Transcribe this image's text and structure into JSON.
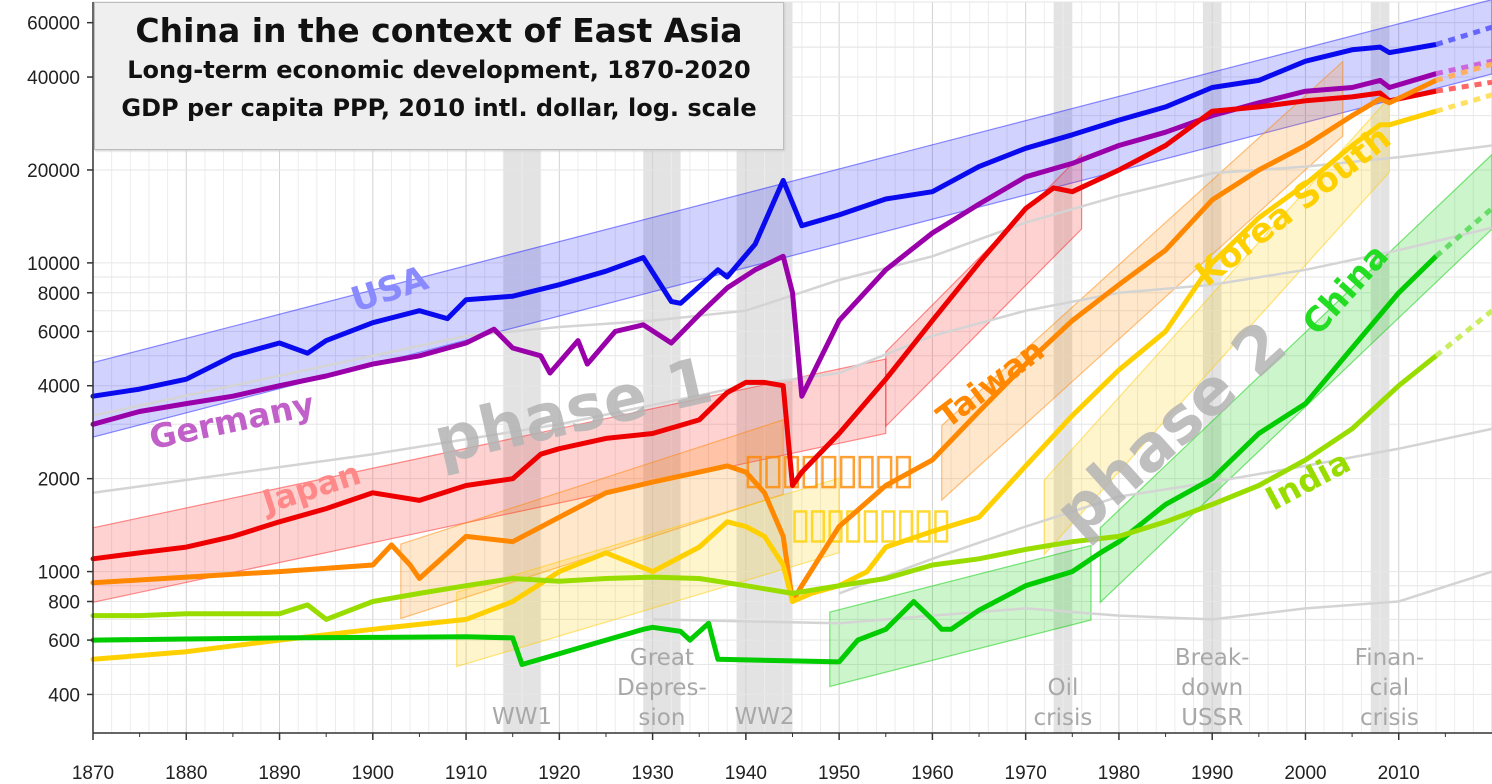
{
  "chart_data": {
    "type": "line",
    "title": "China in the context of East Asia",
    "subtitle_lines": [
      "Long-term economic development, 1870-2020",
      "GDP per capita PPP, 2010 intl. dollar, log. scale"
    ],
    "xlabel": "",
    "ylabel": "",
    "xlim": [
      1870,
      2020
    ],
    "ylim": [
      300,
      70000
    ],
    "yscale": "log",
    "grid": true,
    "x_ticks": [
      1870,
      1880,
      1890,
      1900,
      1910,
      1920,
      1930,
      1940,
      1950,
      1960,
      1970,
      1980,
      1990,
      2000,
      2010
    ],
    "y_ticks": [
      {
        "value": 400,
        "label": "400"
      },
      {
        "value": 600,
        "label": "600"
      },
      {
        "value": 800,
        "label": "800"
      },
      {
        "value": 1000,
        "label": "1000"
      },
      {
        "value": 2000,
        "label": "2000"
      },
      {
        "value": 4000,
        "label": "4000"
      },
      {
        "value": 6000,
        "label": "6000"
      },
      {
        "value": 8000,
        "label": "8000"
      },
      {
        "value": 10000,
        "label": "10000"
      },
      {
        "value": 20000,
        "label": "20000"
      },
      {
        "value": 40000,
        "label": "40000"
      },
      {
        "value": 60000,
        "label": "60000"
      }
    ],
    "series": [
      {
        "name": "USA",
        "color": "#0a0aee",
        "x": [
          1870,
          1875,
          1880,
          1885,
          1890,
          1893,
          1895,
          1900,
          1905,
          1908,
          1910,
          1915,
          1920,
          1925,
          1929,
          1932,
          1933,
          1937,
          1938,
          1941,
          1944,
          1946,
          1950,
          1955,
          1960,
          1965,
          1970,
          1975,
          1980,
          1985,
          1990,
          1995,
          2000,
          2005,
          2008,
          2009,
          2014
        ],
        "y": [
          3700,
          3900,
          4200,
          5000,
          5500,
          5100,
          5600,
          6400,
          7000,
          6600,
          7600,
          7800,
          8500,
          9400,
          10400,
          7500,
          7400,
          9500,
          9000,
          11500,
          18500,
          13200,
          14300,
          16100,
          17000,
          20500,
          23500,
          26000,
          29000,
          32000,
          37000,
          39000,
          45000,
          49000,
          50000,
          48000,
          51000
        ]
      },
      {
        "name": "Germany",
        "color": "#9900aa",
        "x": [
          1870,
          1875,
          1880,
          1885,
          1890,
          1895,
          1900,
          1905,
          1910,
          1913,
          1915,
          1918,
          1919,
          1922,
          1923,
          1926,
          1929,
          1932,
          1935,
          1938,
          1941,
          1944,
          1945,
          1946,
          1950,
          1955,
          1960,
          1965,
          1970,
          1975,
          1980,
          1985,
          1990,
          1995,
          2000,
          2005,
          2008,
          2009,
          2014
        ],
        "y": [
          3000,
          3300,
          3500,
          3700,
          4000,
          4300,
          4700,
          5000,
          5500,
          6100,
          5300,
          5000,
          4400,
          5600,
          4700,
          6000,
          6300,
          5500,
          6800,
          8300,
          9500,
          10500,
          8000,
          3700,
          6500,
          9500,
          12500,
          15500,
          19000,
          21000,
          24000,
          26500,
          30000,
          33000,
          36000,
          37000,
          39000,
          37000,
          41000
        ]
      },
      {
        "name": "Japan",
        "color": "#ee0000",
        "x": [
          1870,
          1875,
          1880,
          1885,
          1890,
          1895,
          1900,
          1905,
          1910,
          1915,
          1918,
          1920,
          1925,
          1930,
          1935,
          1938,
          1940,
          1942,
          1944,
          1945,
          1946,
          1950,
          1955,
          1960,
          1965,
          1970,
          1973,
          1975,
          1980,
          1985,
          1990,
          1995,
          2000,
          2005,
          2008,
          2009,
          2014
        ],
        "y": [
          1100,
          1150,
          1200,
          1300,
          1450,
          1600,
          1800,
          1700,
          1900,
          2000,
          2400,
          2500,
          2700,
          2800,
          3100,
          3800,
          4100,
          4100,
          4000,
          1900,
          2100,
          2800,
          4200,
          6500,
          10000,
          15000,
          17500,
          17000,
          20000,
          24000,
          31000,
          32000,
          33500,
          34500,
          35500,
          33500,
          36000
        ]
      },
      {
        "name": "Taiwan",
        "color": "#ff8800",
        "x": [
          1870,
          1880,
          1890,
          1900,
          1902,
          1904,
          1905,
          1910,
          1915,
          1920,
          1925,
          1930,
          1935,
          1938,
          1940,
          1942,
          1944,
          1945,
          1946,
          1950,
          1955,
          1960,
          1965,
          1970,
          1975,
          1980,
          1985,
          1990,
          1995,
          2000,
          2005,
          2008,
          2009,
          2014
        ],
        "y": [
          920,
          960,
          1000,
          1050,
          1220,
          1050,
          950,
          1300,
          1250,
          1500,
          1800,
          1950,
          2100,
          2200,
          2100,
          1800,
          1300,
          800,
          900,
          1400,
          1900,
          2300,
          3300,
          4700,
          6500,
          8500,
          11000,
          16000,
          20000,
          24000,
          30000,
          34000,
          33000,
          39000
        ]
      },
      {
        "name": "Korea South",
        "color": "#ffd000",
        "x": [
          1870,
          1880,
          1890,
          1900,
          1910,
          1915,
          1920,
          1925,
          1930,
          1935,
          1938,
          1940,
          1942,
          1944,
          1945,
          1947,
          1950,
          1953,
          1955,
          1960,
          1965,
          1970,
          1975,
          1980,
          1985,
          1990,
          1995,
          2000,
          2005,
          2008,
          2009,
          2014
        ],
        "y": [
          520,
          550,
          600,
          650,
          700,
          800,
          1000,
          1150,
          1000,
          1200,
          1450,
          1400,
          1300,
          1050,
          800,
          850,
          900,
          1000,
          1200,
          1350,
          1500,
          2200,
          3200,
          4500,
          6000,
          10000,
          14000,
          18000,
          24000,
          28000,
          28000,
          31000
        ]
      },
      {
        "name": "China",
        "color": "#00cc00",
        "x": [
          1870,
          1880,
          1890,
          1900,
          1910,
          1915,
          1916,
          1929,
          1930,
          1933,
          1934,
          1936,
          1937,
          1950,
          1952,
          1955,
          1958,
          1960,
          1961,
          1962,
          1965,
          1970,
          1975,
          1978,
          1980,
          1985,
          1990,
          1995,
          2000,
          2005,
          2010,
          2014
        ],
        "y": [
          600,
          605,
          610,
          612,
          615,
          610,
          500,
          650,
          660,
          640,
          600,
          680,
          520,
          510,
          600,
          650,
          800,
          700,
          650,
          650,
          750,
          900,
          1000,
          1150,
          1250,
          1650,
          2000,
          2800,
          3500,
          5300,
          8000,
          10500
        ]
      },
      {
        "name": "India",
        "color": "#99dd00",
        "x": [
          1870,
          1875,
          1880,
          1885,
          1890,
          1893,
          1895,
          1900,
          1905,
          1910,
          1915,
          1920,
          1925,
          1930,
          1935,
          1940,
          1945,
          1950,
          1955,
          1960,
          1965,
          1970,
          1975,
          1980,
          1985,
          1990,
          1995,
          2000,
          2005,
          2010,
          2014
        ],
        "y": [
          720,
          720,
          730,
          730,
          730,
          780,
          700,
          800,
          850,
          900,
          950,
          930,
          950,
          960,
          950,
          900,
          850,
          900,
          950,
          1050,
          1100,
          1180,
          1250,
          1300,
          1450,
          1650,
          1900,
          2300,
          2900,
          4000,
          5000
        ]
      }
    ],
    "gray_series": [
      {
        "x": [
          1870,
          1900,
          1910,
          1920,
          1930,
          1940,
          1950,
          1960,
          1970,
          1980,
          1990,
          2000,
          2010,
          2020
        ],
        "y": [
          3200,
          5000,
          5800,
          6200,
          6500,
          7000,
          8800,
          10500,
          13500,
          16500,
          19500,
          20500,
          22000,
          24000
        ]
      },
      {
        "x": [
          1870,
          1900,
          1920,
          1940,
          1950,
          1960,
          1970,
          1980,
          1990,
          2000,
          2010,
          2020
        ],
        "y": [
          1800,
          2400,
          3000,
          4000,
          4400,
          5800,
          7000,
          8000,
          8500,
          9500,
          11000,
          13000
        ]
      },
      {
        "x": [
          1950,
          1960,
          1970,
          1980,
          1990,
          2000,
          2010,
          2020
        ],
        "y": [
          850,
          1100,
          1400,
          1750,
          1950,
          2200,
          2500,
          2900
        ]
      },
      {
        "x": [
          1930,
          1950,
          1960,
          1970,
          1980,
          1990,
          2000,
          2010,
          2020
        ],
        "y": [
          700,
          680,
          720,
          760,
          720,
          700,
          760,
          800,
          1000
        ]
      }
    ],
    "dotted_extensions": [
      {
        "color": "#6666ff",
        "x": [
          2014,
          2020
        ],
        "y": [
          51000,
          58000
        ]
      },
      {
        "color": "#cc66dd",
        "x": [
          2014,
          2020
        ],
        "y": [
          41000,
          45000
        ]
      },
      {
        "color": "#ff6666",
        "x": [
          2014,
          2020
        ],
        "y": [
          36000,
          38500
        ]
      },
      {
        "color": "#ffb060",
        "x": [
          2014,
          2020
        ],
        "y": [
          39000,
          44000
        ]
      },
      {
        "color": "#ffe060",
        "x": [
          2014,
          2020
        ],
        "y": [
          31000,
          35000
        ]
      },
      {
        "color": "#66dd66",
        "x": [
          2014,
          2020
        ],
        "y": [
          10500,
          15000
        ]
      },
      {
        "color": "#c8ee60",
        "x": [
          2014,
          2020
        ],
        "y": [
          5000,
          7000
        ]
      }
    ],
    "trend_bands": [
      {
        "color": "#2020ff",
        "x": [
          1870,
          2020
        ],
        "y": [
          3600,
          54000
        ],
        "ratio": 1.32
      },
      {
        "color": "#ff2020",
        "x": [
          1870,
          1955
        ],
        "y": [
          1050,
          3700
        ],
        "ratio": 1.32
      },
      {
        "color": "#ff8800",
        "x": [
          1903,
          1944
        ],
        "y": [
          930,
          2350
        ],
        "ratio": 1.32
      },
      {
        "color": "#ffcc00",
        "x": [
          1909,
          1950
        ],
        "y": [
          650,
          1520
        ],
        "ratio": 1.32
      },
      {
        "color": "#00cc00",
        "x": [
          1949,
          1977
        ],
        "y": [
          560,
          920
        ],
        "ratio": 1.32
      },
      {
        "color": "#ff2020",
        "x": [
          1955,
          1976
        ],
        "y": [
          3900,
          17000
        ],
        "ratio": 1.32
      },
      {
        "color": "#ff8800",
        "x": [
          1961,
          2004
        ],
        "y": [
          2250,
          34000
        ],
        "ratio": 1.32
      },
      {
        "color": "#ffcc00",
        "x": [
          1972,
          2009
        ],
        "y": [
          1500,
          26000
        ],
        "ratio": 1.32
      },
      {
        "color": "#00cc00",
        "x": [
          1978,
          2020
        ],
        "y": [
          1050,
          17000
        ],
        "ratio": 1.32
      }
    ],
    "event_bands": [
      1914,
      1918,
      1929,
      1933,
      1939,
      1945,
      1973,
      1975,
      1989,
      1991,
      2007,
      2009
    ],
    "annotations": [
      {
        "lines": [
          "WW1"
        ],
        "x": 1916
      },
      {
        "lines": [
          "Great",
          "Depres-",
          "sion"
        ],
        "x": 1931
      },
      {
        "lines": [
          "WW2"
        ],
        "x": 1942
      },
      {
        "lines": [
          "Oil",
          "crisis"
        ],
        "x": 1974
      },
      {
        "lines": [
          "Break-",
          "down",
          "USSR"
        ],
        "x": 1990
      },
      {
        "lines": [
          "Finan-",
          "cial",
          "crisis"
        ],
        "x": 2009
      }
    ],
    "series_labels": [
      {
        "text": "USA",
        "color": "#8a8aff"
      },
      {
        "text": "Germany",
        "color": "#c060c8"
      },
      {
        "text": "Japan",
        "color": "#ff8888"
      },
      {
        "text": "Taiwan",
        "color": "#ff8800"
      },
      {
        "text": "Korea South",
        "color": "#ffd000"
      },
      {
        "text": "China",
        "color": "#22dd22"
      },
      {
        "text": "India",
        "color": "#99dd00"
      }
    ],
    "phase_labels": [
      "phase 1",
      "phase 2"
    ],
    "gap_markers": [
      {
        "color": "#ff8800",
        "x": [
          1940,
          1958
        ],
        "y": 2100
      },
      {
        "color": "#ffd000",
        "x": [
          1945,
          1962
        ],
        "y": 1400
      }
    ]
  }
}
